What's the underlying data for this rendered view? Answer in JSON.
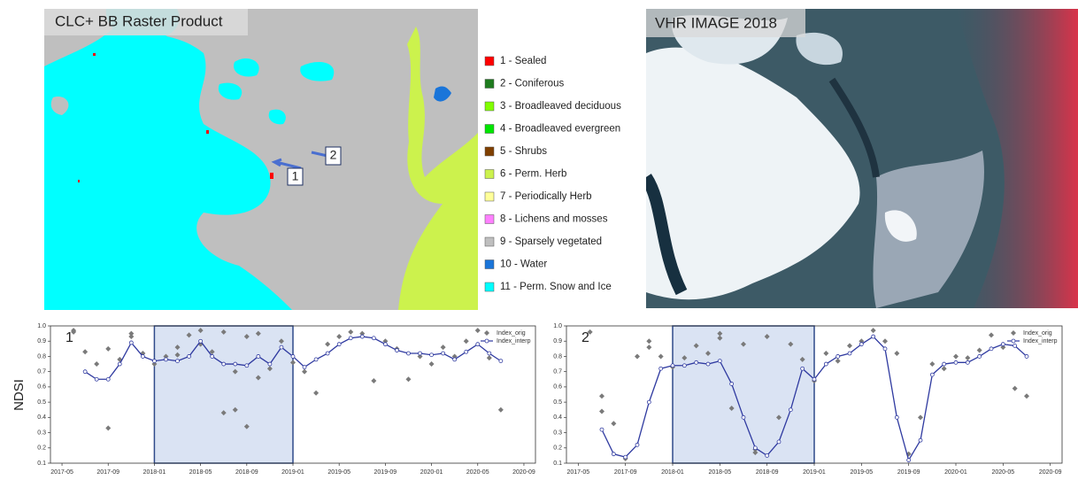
{
  "map_panel": {
    "title": "CLC+ BB Raster Product",
    "markers": [
      "1",
      "2"
    ],
    "legend": [
      {
        "label": "1 - Sealed",
        "color": "#ff0000"
      },
      {
        "label": "2 - Coniferous",
        "color": "#1e7b1e"
      },
      {
        "label": "3 - Broadleaved deciduous",
        "color": "#80ff00"
      },
      {
        "label": "4 - Broadleaved evergreen",
        "color": "#00e600"
      },
      {
        "label": "5 - Shrubs",
        "color": "#804000"
      },
      {
        "label": "6 - Perm. Herb",
        "color": "#ccf24d"
      },
      {
        "label": "7 - Periodically Herb",
        "color": "#ffff99"
      },
      {
        "label": "8 - Lichens and mosses",
        "color": "#ff80ff"
      },
      {
        "label": "9 - Sparsely vegetated",
        "color": "#bfbfbf"
      },
      {
        "label": "10 - Water",
        "color": "#1a75d9"
      },
      {
        "label": "11 - Perm. Snow and Ice",
        "color": "#00ffff"
      }
    ]
  },
  "image_panel": {
    "title": "VHR IMAGE 2018"
  },
  "shared_y_label": "NDSI",
  "chart_data": [
    {
      "type": "line",
      "panel_label": "1",
      "legend_corner": "upper right",
      "xlim": [
        "2017-04",
        "2020-10"
      ],
      "ylim": [
        0.1,
        1
      ],
      "xticks": [
        "2017-05",
        "2017-09",
        "2018-01",
        "2018-05",
        "2018-09",
        "2019-01",
        "2019-05",
        "2019-09",
        "2020-01",
        "2020-05",
        "2020-09"
      ],
      "yticks": [
        0.1,
        0.2,
        0.3,
        0.4,
        0.5,
        0.6,
        0.7,
        0.8,
        0.9,
        {
          "value": 1,
          "label": "1.0"
        }
      ],
      "highlight": [
        "2018-01",
        "2019-01"
      ],
      "series": [
        {
          "name": "Index_orig",
          "mode": "markers",
          "color": "#7a7a7a",
          "x": [
            "2017-06",
            "2017-06",
            "2017-07",
            "2017-08",
            "2017-09",
            "2017-09",
            "2017-10",
            "2017-11",
            "2017-11",
            "2017-12",
            "2018-01",
            "2018-02",
            "2018-03",
            "2018-03",
            "2018-04",
            "2018-05",
            "2018-05",
            "2018-06",
            "2018-07",
            "2018-07",
            "2018-08",
            "2018-08",
            "2018-09",
            "2018-09",
            "2018-10",
            "2018-10",
            "2018-11",
            "2018-12",
            "2019-01",
            "2019-02",
            "2019-03",
            "2019-04",
            "2019-05",
            "2019-06",
            "2019-07",
            "2019-08",
            "2019-09",
            "2019-10",
            "2019-11",
            "2019-12",
            "2020-01",
            "2020-02",
            "2020-03",
            "2020-04",
            "2020-05",
            "2020-06",
            "2020-07"
          ],
          "values": [
            0.97,
            0.96,
            0.83,
            0.75,
            0.33,
            0.85,
            0.78,
            0.95,
            0.93,
            0.82,
            0.75,
            0.8,
            0.86,
            0.81,
            0.94,
            0.97,
            0.88,
            0.83,
            0.43,
            0.96,
            0.7,
            0.45,
            0.93,
            0.34,
            0.66,
            0.95,
            0.72,
            0.9,
            0.76,
            0.7,
            0.56,
            0.88,
            0.93,
            0.96,
            0.95,
            0.64,
            0.9,
            0.85,
            0.65,
            0.8,
            0.75,
            0.86,
            0.8,
            0.9,
            0.97,
            0.79,
            0.45
          ]
        },
        {
          "name": "Index_interp",
          "mode": "lines+markers",
          "color": "#2f3aa0",
          "x": [
            "2017-07",
            "2017-08",
            "2017-09",
            "2017-10",
            "2017-11",
            "2017-12",
            "2018-01",
            "2018-02",
            "2018-03",
            "2018-04",
            "2018-05",
            "2018-06",
            "2018-07",
            "2018-08",
            "2018-09",
            "2018-10",
            "2018-11",
            "2018-12",
            "2019-01",
            "2019-02",
            "2019-03",
            "2019-04",
            "2019-05",
            "2019-06",
            "2019-07",
            "2019-08",
            "2019-09",
            "2019-10",
            "2019-11",
            "2019-12",
            "2020-01",
            "2020-02",
            "2020-03",
            "2020-04",
            "2020-05",
            "2020-06",
            "2020-07"
          ],
          "values": [
            0.7,
            0.65,
            0.65,
            0.75,
            0.89,
            0.8,
            0.77,
            0.78,
            0.77,
            0.8,
            0.9,
            0.8,
            0.75,
            0.75,
            0.74,
            0.8,
            0.75,
            0.86,
            0.8,
            0.73,
            0.78,
            0.82,
            0.88,
            0.92,
            0.93,
            0.92,
            0.88,
            0.84,
            0.82,
            0.82,
            0.81,
            0.82,
            0.78,
            0.83,
            0.88,
            0.82,
            0.77
          ]
        }
      ]
    },
    {
      "type": "line",
      "panel_label": "2",
      "legend_corner": "upper right",
      "xlim": [
        "2017-04",
        "2020-10"
      ],
      "ylim": [
        0.1,
        1
      ],
      "xticks": [
        "2017-05",
        "2017-09",
        "2018-01",
        "2018-05",
        "2018-09",
        "2019-01",
        "2019-05",
        "2019-09",
        "2020-01",
        "2020-05",
        "2020-09"
      ],
      "yticks": [
        0.1,
        0.2,
        0.3,
        0.4,
        0.5,
        0.6,
        0.7,
        0.8,
        0.9,
        {
          "value": 1,
          "label": "1.0"
        }
      ],
      "highlight": [
        "2018-01",
        "2019-01"
      ],
      "series": [
        {
          "name": "Index_orig",
          "mode": "markers",
          "color": "#7a7a7a",
          "x": [
            "2017-06",
            "2017-07",
            "2017-07",
            "2017-08",
            "2017-09",
            "2017-10",
            "2017-11",
            "2017-11",
            "2017-12",
            "2018-01",
            "2018-02",
            "2018-03",
            "2018-04",
            "2018-05",
            "2018-05",
            "2018-06",
            "2018-07",
            "2018-08",
            "2018-08",
            "2018-09",
            "2018-10",
            "2018-11",
            "2018-12",
            "2019-01",
            "2019-02",
            "2019-03",
            "2019-04",
            "2019-05",
            "2019-06",
            "2019-07",
            "2019-08",
            "2019-09",
            "2019-10",
            "2019-11",
            "2019-12",
            "2020-01",
            "2020-02",
            "2020-03",
            "2020-04",
            "2020-05",
            "2020-06",
            "2020-07"
          ],
          "values": [
            0.96,
            0.54,
            0.44,
            0.36,
            0.13,
            0.8,
            0.9,
            0.86,
            0.8,
            0.73,
            0.79,
            0.87,
            0.82,
            0.95,
            0.92,
            0.46,
            0.88,
            0.17,
            0.19,
            0.93,
            0.4,
            0.88,
            0.78,
            0.64,
            0.82,
            0.77,
            0.87,
            0.9,
            0.97,
            0.9,
            0.82,
            0.16,
            0.4,
            0.75,
            0.72,
            0.8,
            0.79,
            0.84,
            0.94,
            0.86,
            0.59,
            0.54
          ]
        },
        {
          "name": "Index_interp",
          "mode": "lines+markers",
          "color": "#2f3aa0",
          "x": [
            "2017-07",
            "2017-08",
            "2017-09",
            "2017-10",
            "2017-11",
            "2017-12",
            "2018-01",
            "2018-02",
            "2018-03",
            "2018-04",
            "2018-05",
            "2018-06",
            "2018-07",
            "2018-08",
            "2018-09",
            "2018-10",
            "2018-11",
            "2018-12",
            "2019-01",
            "2019-02",
            "2019-03",
            "2019-04",
            "2019-05",
            "2019-06",
            "2019-07",
            "2019-08",
            "2019-09",
            "2019-10",
            "2019-11",
            "2019-12",
            "2020-01",
            "2020-02",
            "2020-03",
            "2020-04",
            "2020-05",
            "2020-06",
            "2020-07"
          ],
          "values": [
            0.32,
            0.16,
            0.14,
            0.22,
            0.5,
            0.72,
            0.74,
            0.74,
            0.76,
            0.75,
            0.77,
            0.62,
            0.4,
            0.2,
            0.15,
            0.24,
            0.45,
            0.72,
            0.65,
            0.75,
            0.8,
            0.82,
            0.88,
            0.93,
            0.85,
            0.4,
            0.12,
            0.25,
            0.68,
            0.75,
            0.76,
            0.76,
            0.8,
            0.85,
            0.88,
            0.87,
            0.8
          ]
        }
      ]
    }
  ]
}
